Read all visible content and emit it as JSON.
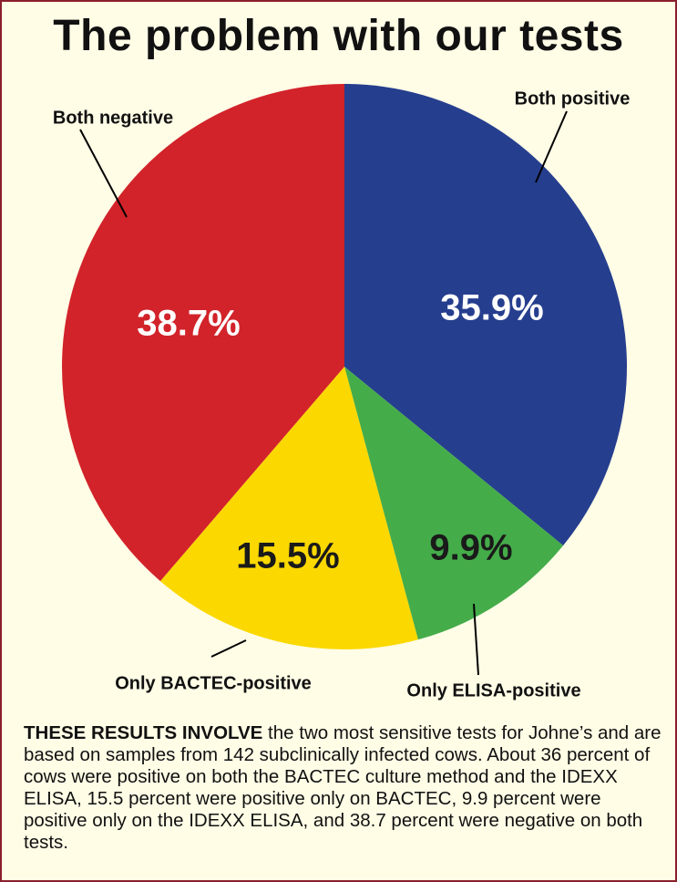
{
  "title": "The problem with our tests",
  "chart_data": {
    "type": "pie",
    "start_angle_deg": 0,
    "direction": "clockwise",
    "slices": [
      {
        "label": "Both positive",
        "value": 35.9,
        "value_label": "35.9%",
        "color": "#263e8e",
        "value_color": "#ffffff"
      },
      {
        "label": "Only ELISA-positive",
        "value": 9.9,
        "value_label": "9.9%",
        "color": "#45ac4a",
        "value_color": "#1a1a1a"
      },
      {
        "label": "Only BACTEC-positive",
        "value": 15.5,
        "value_label": "15.5%",
        "color": "#fbd800",
        "value_color": "#1a1a1a"
      },
      {
        "label": "Both negative",
        "value": 38.7,
        "value_label": "38.7%",
        "color": "#d2232a",
        "value_color": "#ffffff"
      }
    ]
  },
  "caption": {
    "lead": "THESE RESULTS INVOLVE",
    "text": " the two most sensitive tests for Johne’s and are based on samples from 142 subclinically infected cows. About 36 percent of cows were positive on both the BACTEC culture method and the IDEXX ELISA, 15.5 percent were positive only on BACTEC, 9.9 percent were positive only on the IDEXX ELISA, and 38.7 percent were negative on both tests."
  }
}
